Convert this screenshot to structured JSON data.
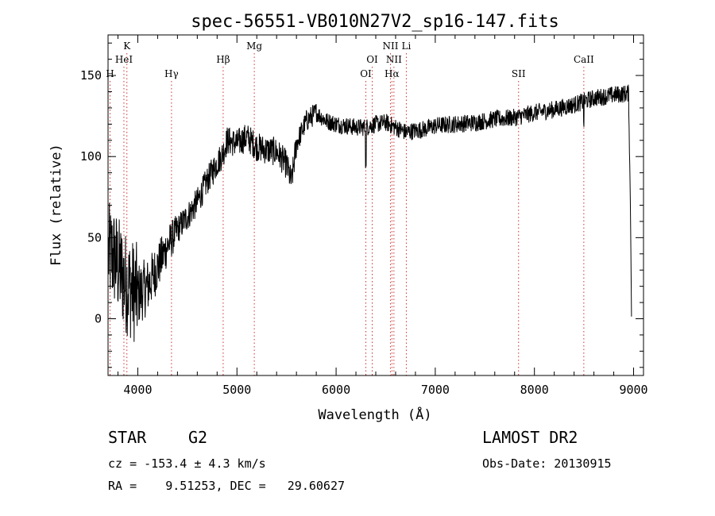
{
  "chart_data": {
    "type": "line",
    "title": "spec-56551-VB010N27V2_sp16-147.fits",
    "xlabel": "Wavelength (Å)",
    "ylabel": "Flux (relative)",
    "xlim": [
      3700,
      9100
    ],
    "ylim": [
      -35,
      175
    ],
    "xticks": [
      4000,
      5000,
      6000,
      7000,
      8000,
      9000
    ],
    "yticks": [
      0,
      50,
      100,
      150
    ],
    "line_color": "#000000",
    "marker_color": "#cc3333",
    "markers": [
      {
        "label": "H",
        "x": 3720,
        "row": 3
      },
      {
        "label": "K",
        "x": 3890,
        "row": 1
      },
      {
        "label": "HeI",
        "x": 3860,
        "row": 2
      },
      {
        "label": "Hγ",
        "x": 4340,
        "row": 3
      },
      {
        "label": "Hβ",
        "x": 4861,
        "row": 2
      },
      {
        "label": "Mg",
        "x": 5175,
        "row": 1
      },
      {
        "label": "OI",
        "x": 6300,
        "row": 3
      },
      {
        "label": "OI",
        "x": 6364,
        "row": 2
      },
      {
        "label": "NII",
        "x": 6548,
        "row": 1
      },
      {
        "label": "NII",
        "x": 6583,
        "row": 2
      },
      {
        "label": "Hα",
        "x": 6563,
        "row": 3
      },
      {
        "label": "Li",
        "x": 6708,
        "row": 1
      },
      {
        "label": "SII",
        "x": 7840,
        "row": 3
      },
      {
        "label": "CaII",
        "x": 8498,
        "row": 2
      }
    ],
    "spectrum_anchors": [
      [
        3705,
        40
      ],
      [
        3760,
        38
      ],
      [
        3820,
        30
      ],
      [
        3880,
        22
      ],
      [
        3940,
        18
      ],
      [
        4000,
        15
      ],
      [
        4100,
        20
      ],
      [
        4200,
        32
      ],
      [
        4300,
        45
      ],
      [
        4400,
        55
      ],
      [
        4500,
        63
      ],
      [
        4600,
        72
      ],
      [
        4700,
        85
      ],
      [
        4800,
        96
      ],
      [
        4860,
        102
      ],
      [
        4900,
        110
      ],
      [
        5000,
        108
      ],
      [
        5100,
        112
      ],
      [
        5200,
        106
      ],
      [
        5300,
        104
      ],
      [
        5400,
        103
      ],
      [
        5500,
        95
      ],
      [
        5550,
        84
      ],
      [
        5600,
        108
      ],
      [
        5700,
        122
      ],
      [
        5800,
        127
      ],
      [
        5900,
        122
      ],
      [
        6000,
        120
      ],
      [
        6100,
        119
      ],
      [
        6200,
        118
      ],
      [
        6300,
        118
      ],
      [
        6400,
        120
      ],
      [
        6500,
        121
      ],
      [
        6600,
        118
      ],
      [
        6700,
        115
      ],
      [
        6800,
        116
      ],
      [
        6900,
        117
      ],
      [
        7000,
        119
      ],
      [
        7200,
        120
      ],
      [
        7400,
        121
      ],
      [
        7600,
        123
      ],
      [
        7800,
        124
      ],
      [
        8000,
        127
      ],
      [
        8200,
        129
      ],
      [
        8400,
        132
      ],
      [
        8600,
        136
      ],
      [
        8800,
        138
      ],
      [
        8950,
        139
      ],
      [
        8970,
        60
      ],
      [
        8980,
        0
      ]
    ]
  },
  "info": {
    "object_class": "STAR",
    "subclass": "G2",
    "survey": "LAMOST DR2",
    "velocity": "cz = -153.4 ± 4.3 km/s",
    "obs_date": "Obs-Date: 20130915",
    "coords": "RA =    9.51253, DEC =   29.60627"
  }
}
